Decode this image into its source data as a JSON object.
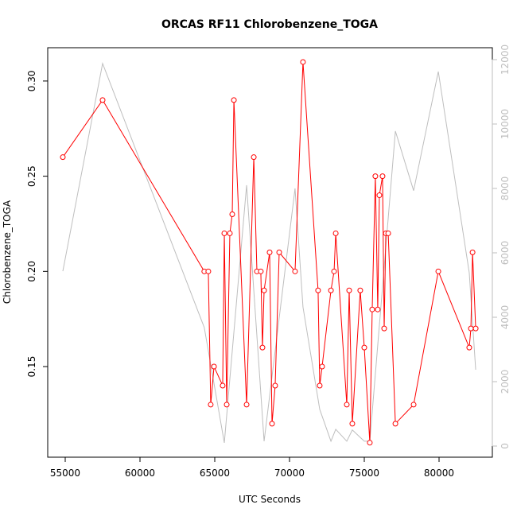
{
  "chart_data": {
    "type": "line",
    "title": "ORCAS RF11 Chlorobenzene_TOGA",
    "xlabel": "UTC Seconds",
    "ylabel": "Chlorobenzene_TOGA",
    "xlim": [
      53830,
      83564
    ],
    "ylim": [
      0.1024,
      0.3175
    ],
    "y2lim": [
      -346,
      12370
    ],
    "xticks": [
      55000,
      60000,
      65000,
      70000,
      75000,
      80000
    ],
    "yticks": [
      0.15,
      {
        "value": 0.2,
        "label": "0.20"
      },
      0.25,
      {
        "value": 0.3,
        "label": "0.30"
      }
    ],
    "y2ticks": [
      0,
      2000,
      4000,
      6000,
      8000,
      10000,
      12000
    ],
    "series": [
      {
        "color": "#bebebe",
        "axis": "y2",
        "x": [
          54840,
          57500,
          64300,
          65640,
          67130,
          68300,
          70370,
          70900,
          72020,
          72770,
          73090,
          73830,
          74200,
          75000,
          75370,
          77080,
          78300,
          79950,
          82020,
          82450
        ],
        "values": [
          5430,
          11880,
          3680,
          100,
          8100,
          150,
          8000,
          4320,
          1140,
          150,
          520,
          150,
          500,
          150,
          150,
          9780,
          7930,
          11630,
          5380,
          2370
        ]
      },
      {
        "color": "#ff0000",
        "axis": "y",
        "x": [
          54840,
          57500,
          64300,
          64570,
          64730,
          64950,
          65530,
          65640,
          65800,
          66010,
          66170,
          66280,
          67130,
          67610,
          67820,
          68080,
          68190,
          68300,
          68670,
          68830,
          69040,
          69310,
          70370,
          70900,
          71910,
          72020,
          72180,
          72770,
          72980,
          73090,
          73830,
          73990,
          74200,
          74730,
          75000,
          75370,
          75530,
          75740,
          75900,
          76010,
          76220,
          76330,
          76440,
          76600,
          77080,
          78300,
          79950,
          82020,
          82130,
          82240,
          82450
        ],
        "values": [
          0.26,
          0.29,
          0.2,
          0.2,
          0.13,
          0.15,
          0.14,
          0.22,
          0.13,
          0.22,
          0.23,
          0.29,
          0.13,
          0.26,
          0.2,
          0.2,
          0.16,
          0.19,
          0.21,
          0.12,
          0.14,
          0.21,
          0.2,
          0.31,
          0.19,
          0.14,
          0.15,
          0.19,
          0.2,
          0.22,
          0.13,
          0.19,
          0.12,
          0.19,
          0.16,
          0.11,
          0.18,
          0.25,
          0.18,
          0.24,
          0.25,
          0.17,
          0.22,
          0.22,
          0.12,
          0.13,
          0.2,
          0.16,
          0.17,
          0.21,
          0.17
        ]
      }
    ]
  }
}
